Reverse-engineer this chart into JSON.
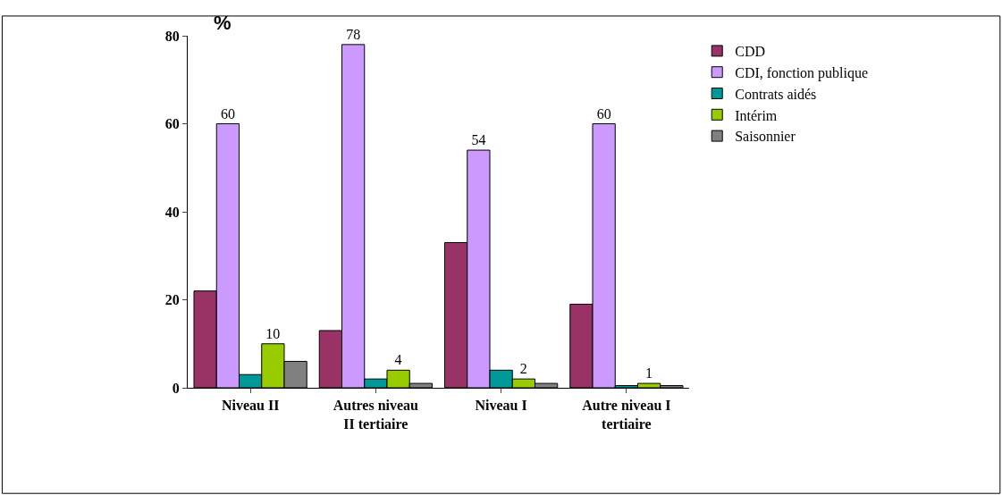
{
  "chart_data": {
    "type": "bar",
    "title": "%",
    "categories": [
      "Niveau II",
      "Autres niveau II tertiaire",
      "Niveau I",
      "Autre niveau I tertiaire"
    ],
    "series": [
      {
        "name": "CDD",
        "color": "#993366",
        "values": [
          22,
          13,
          33,
          19
        ]
      },
      {
        "name": "CDI, fonction publique",
        "color": "#cc99ff",
        "values": [
          60,
          78,
          54,
          60
        ],
        "value_labels": [
          "60",
          "78",
          "54",
          "60"
        ]
      },
      {
        "name": "Contrats aidés",
        "color": "#009999",
        "values": [
          3,
          2,
          4,
          0.5
        ]
      },
      {
        "name": "Intérim",
        "color": "#99cc00",
        "values": [
          10,
          4,
          2,
          1
        ],
        "value_labels": [
          "10",
          "4",
          "2",
          "1"
        ]
      },
      {
        "name": "Saisonnier",
        "color": "#808080",
        "values": [
          6,
          1,
          1,
          0.5
        ]
      }
    ],
    "ylim": [
      0,
      80
    ],
    "yticks": [
      0,
      20,
      40,
      60,
      80
    ],
    "legend": "top right"
  }
}
